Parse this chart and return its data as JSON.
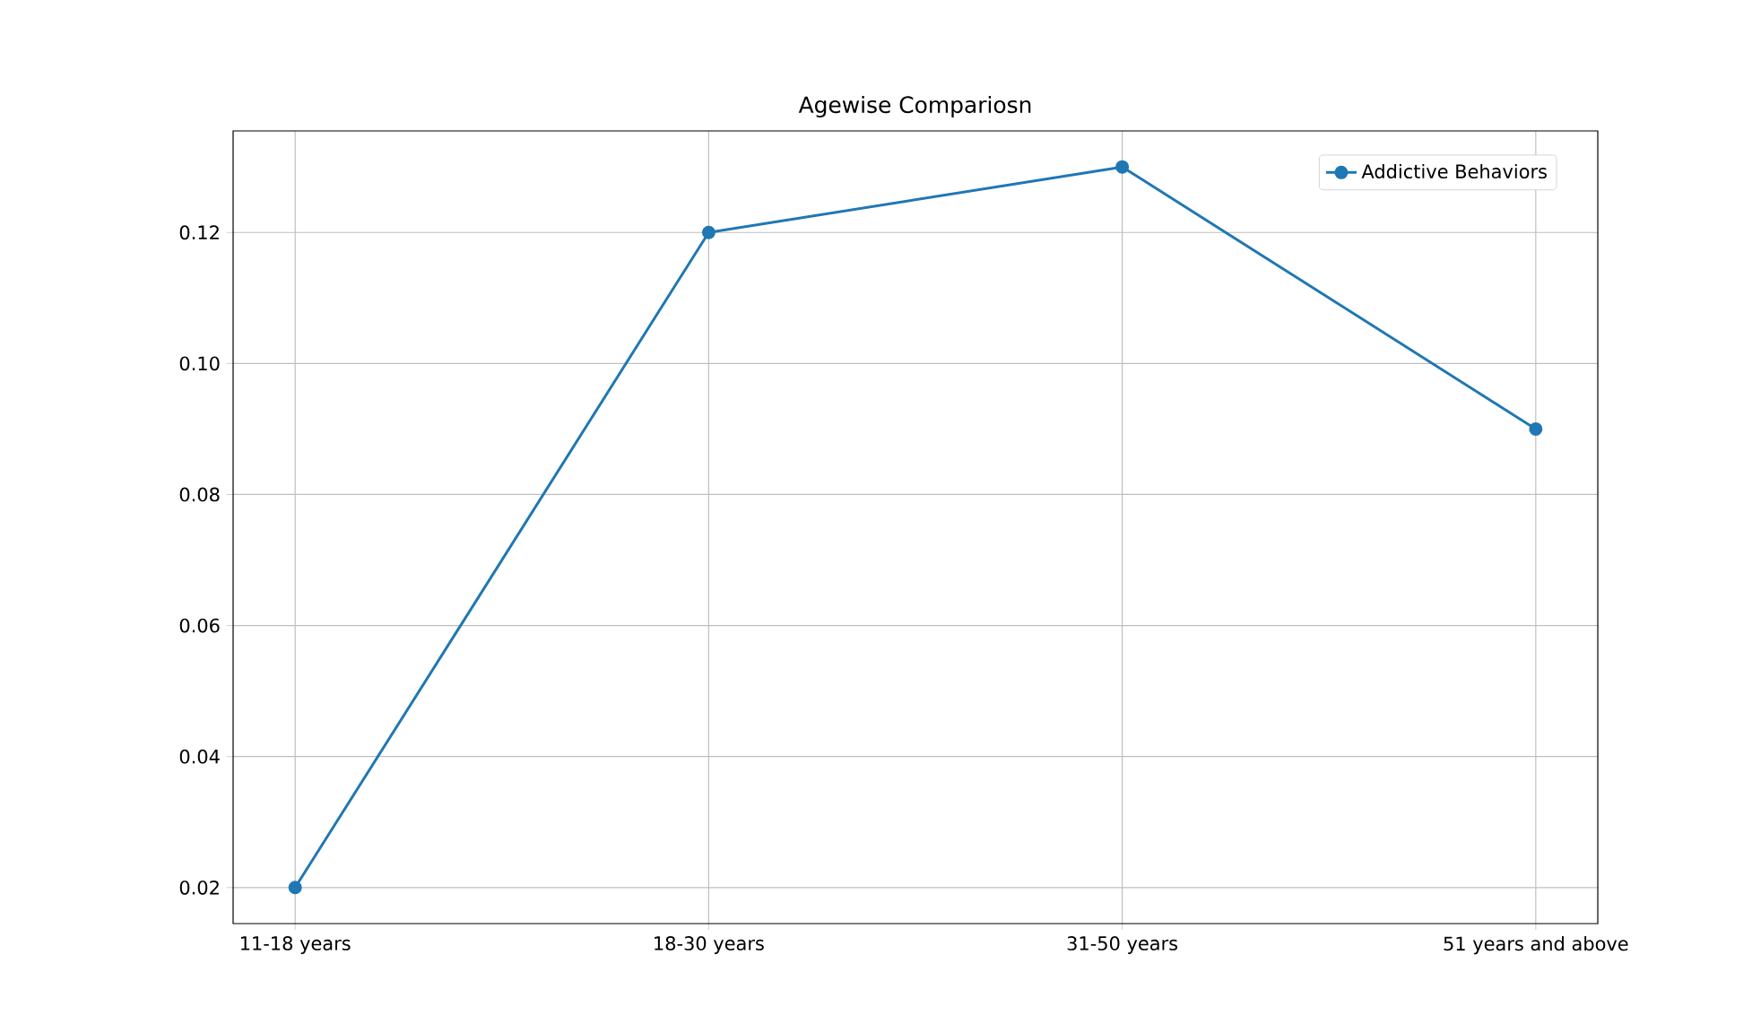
{
  "chart_data": {
    "type": "line",
    "title": "Agewise Compariosn",
    "categories": [
      "11-18 years",
      "18-30 years",
      "31-50 years",
      "51 years and above"
    ],
    "series": [
      {
        "name": "Addictive Behaviors",
        "color": "#1f77b4",
        "values": [
          0.02,
          0.12,
          0.13,
          0.09
        ]
      }
    ],
    "ylim": [
      0.0145,
      0.1355
    ],
    "yticks": [
      0.02,
      0.04,
      0.06,
      0.08,
      {
        "value": 0.1,
        "label": "0.10"
      },
      0.12
    ],
    "grid": true,
    "legend": "top right",
    "marker": "circle",
    "line_style": "solid"
  }
}
